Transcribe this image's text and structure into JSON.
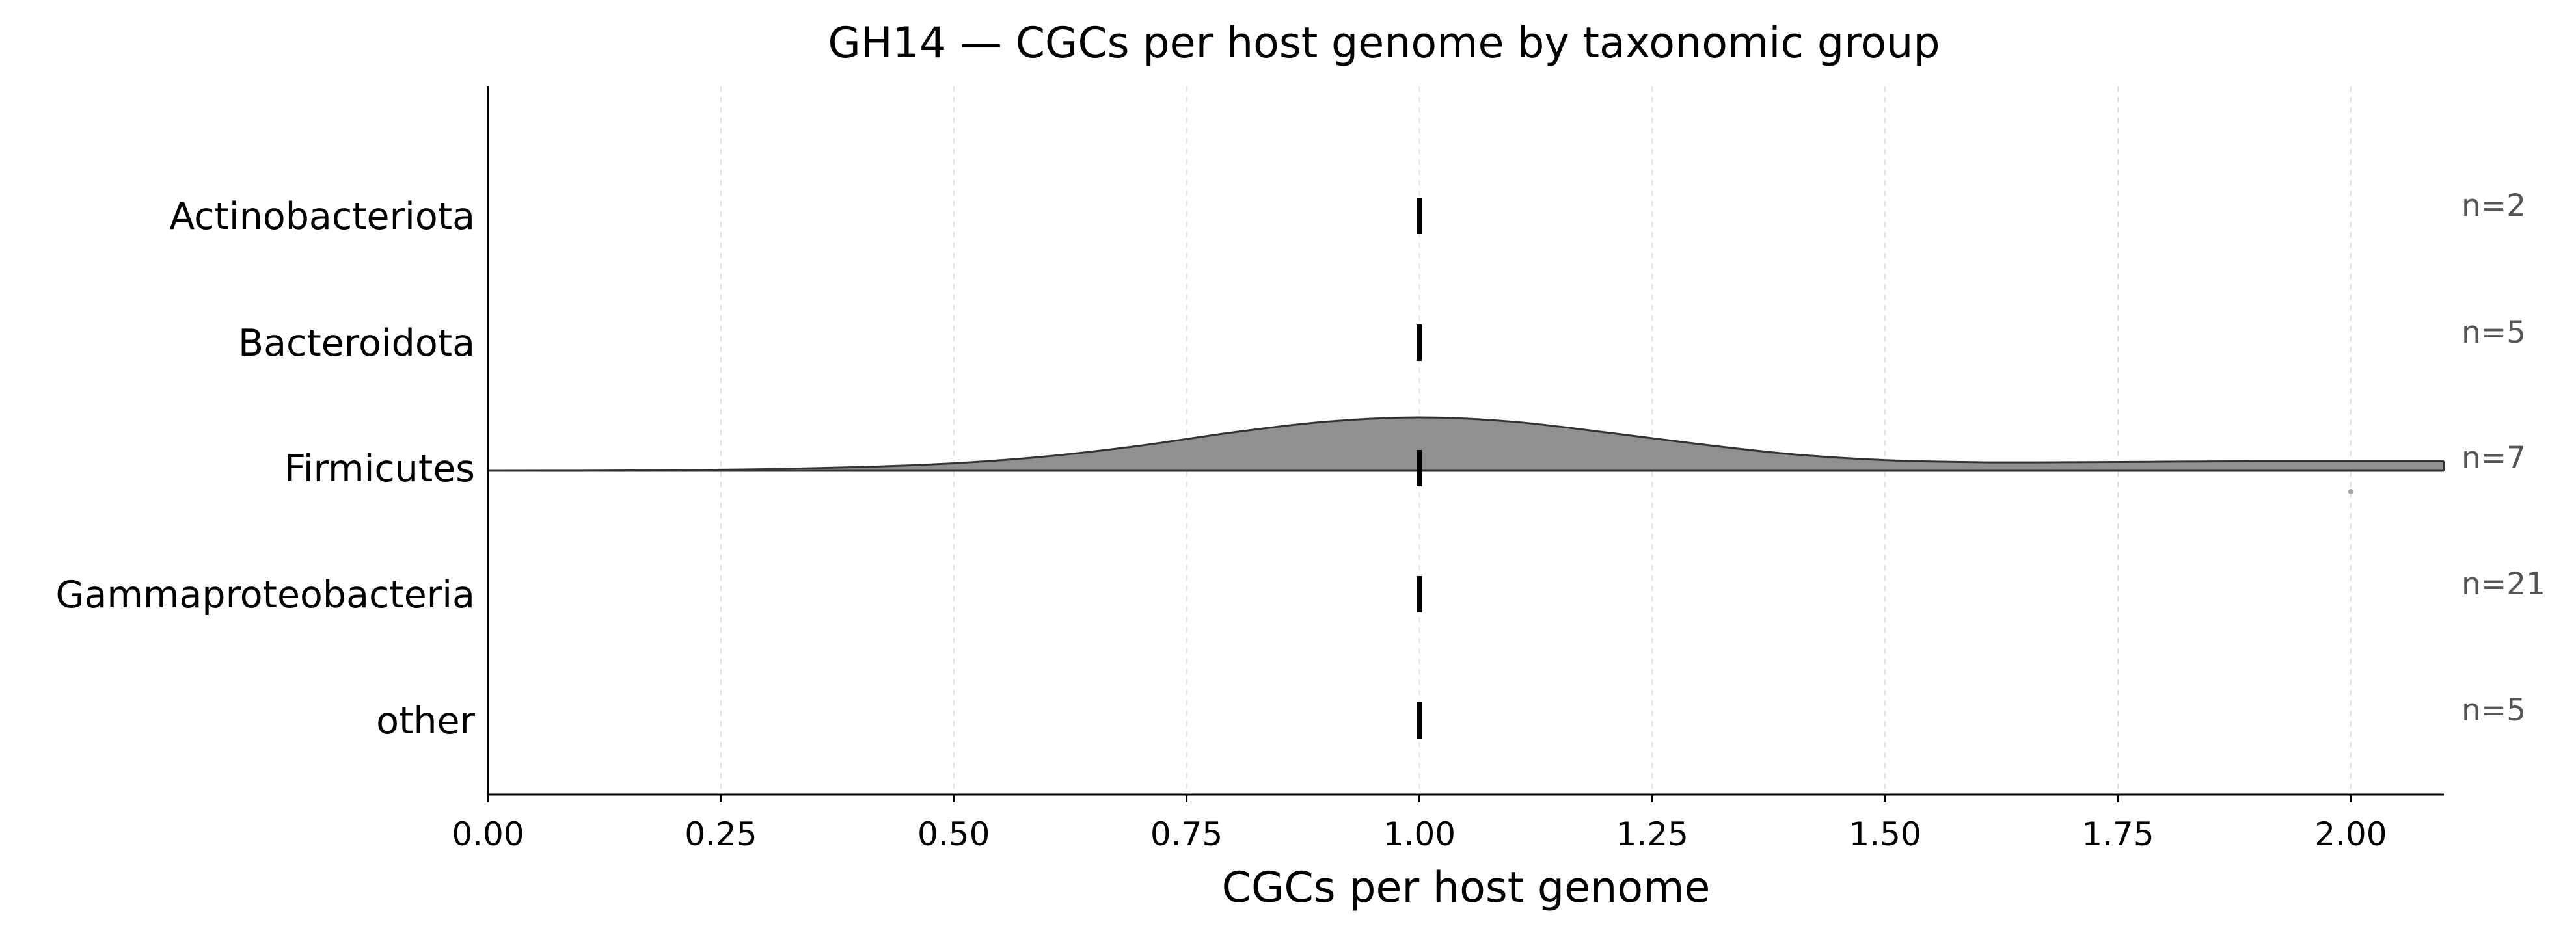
{
  "chart_data": {
    "type": "ridgeline",
    "title": "GH14 — CGCs per host genome by taxonomic group",
    "xlabel": "CGCs per host genome",
    "ylabel": "",
    "xlim": [
      0.0,
      2.1
    ],
    "x_ticks": [
      0.0,
      0.25,
      0.5,
      0.75,
      1.0,
      1.25,
      1.5,
      1.75,
      2.0
    ],
    "x_tick_labels": [
      "0.00",
      "0.25",
      "0.50",
      "0.75",
      "1.00",
      "1.25",
      "1.50",
      "1.75",
      "2.00"
    ],
    "grid": "vertical dashed",
    "categories": [
      "Actinobacteriota",
      "Bacteroidota",
      "Firmicutes",
      "Gammaproteobacteria",
      "other"
    ],
    "n_labels": [
      "n=2",
      "n=5",
      "n=7",
      "n=21",
      "n=5"
    ],
    "medians": [
      1.0,
      1.0,
      1.0,
      1.0,
      1.0
    ],
    "density": {
      "category": "Firmicutes",
      "fill": "#909090",
      "stroke": "#333333",
      "x": [
        0.0,
        0.1,
        0.2,
        0.3,
        0.4,
        0.5,
        0.6,
        0.7,
        0.8,
        0.9,
        1.0,
        1.1,
        1.2,
        1.3,
        1.4,
        1.5,
        1.6,
        1.7,
        1.8,
        1.9,
        2.0,
        2.1
      ],
      "y": [
        0.0,
        0.002,
        0.01,
        0.03,
        0.07,
        0.14,
        0.27,
        0.47,
        0.72,
        0.92,
        1.0,
        0.92,
        0.72,
        0.5,
        0.31,
        0.2,
        0.16,
        0.16,
        0.17,
        0.18,
        0.18,
        0.18
      ]
    },
    "outliers": [
      {
        "category": "Firmicutes",
        "x": 2.0
      }
    ],
    "colors": {
      "median_marker": "#000000",
      "grid": "#e0e0e0",
      "outlier": "#aaaaaa"
    }
  }
}
